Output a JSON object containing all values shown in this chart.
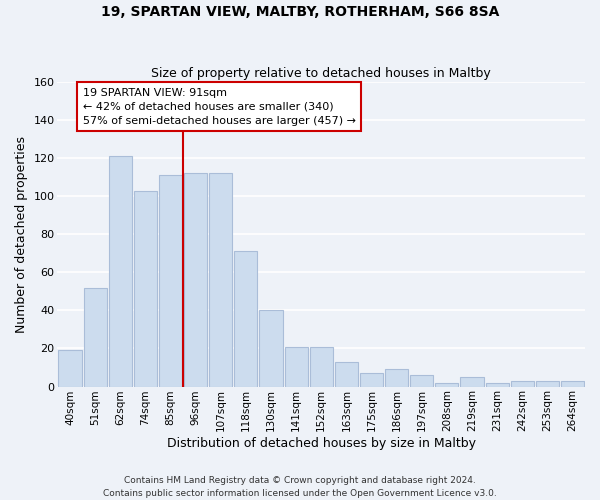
{
  "title1": "19, SPARTAN VIEW, MALTBY, ROTHERHAM, S66 8SA",
  "title2": "Size of property relative to detached houses in Maltby",
  "xlabel": "Distribution of detached houses by size in Maltby",
  "ylabel": "Number of detached properties",
  "bar_labels": [
    "40sqm",
    "51sqm",
    "62sqm",
    "74sqm",
    "85sqm",
    "96sqm",
    "107sqm",
    "118sqm",
    "130sqm",
    "141sqm",
    "152sqm",
    "163sqm",
    "175sqm",
    "186sqm",
    "197sqm",
    "208sqm",
    "219sqm",
    "231sqm",
    "242sqm",
    "253sqm",
    "264sqm"
  ],
  "bar_heights": [
    19,
    52,
    121,
    103,
    111,
    112,
    112,
    71,
    40,
    21,
    21,
    13,
    7,
    9,
    6,
    2,
    5,
    2,
    3,
    3,
    3
  ],
  "bar_color": "#ccdcee",
  "bar_edge_color": "#aabdd8",
  "vline_x_index": 4.5,
  "vline_color": "#cc0000",
  "annotation_text": "19 SPARTAN VIEW: 91sqm\n← 42% of detached houses are smaller (340)\n57% of semi-detached houses are larger (457) →",
  "annotation_box_color": "#ffffff",
  "annotation_box_edge": "#cc0000",
  "ylim": [
    0,
    160
  ],
  "yticks": [
    0,
    20,
    40,
    60,
    80,
    100,
    120,
    140,
    160
  ],
  "footer": "Contains HM Land Registry data © Crown copyright and database right 2024.\nContains public sector information licensed under the Open Government Licence v3.0.",
  "background_color": "#eef2f8",
  "grid_color": "#ffffff"
}
